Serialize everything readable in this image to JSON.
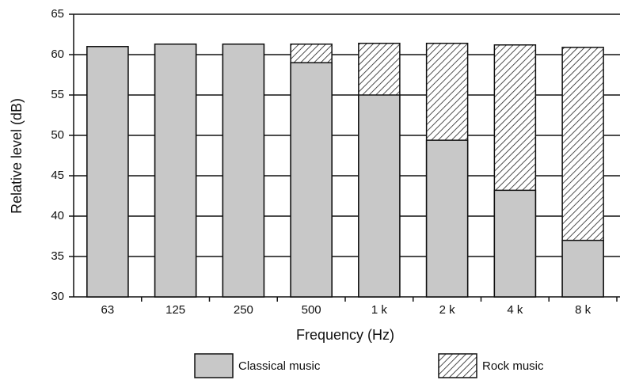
{
  "chart_data": {
    "type": "bar",
    "xlabel": "Frequency (Hz)",
    "ylabel": "Relative level (dB)",
    "categories": [
      "63",
      "125",
      "250",
      "500",
      "1 k",
      "2 k",
      "4 k",
      "8 k"
    ],
    "series": [
      {
        "name": "Rock music",
        "color": "#ffffff",
        "hatch": true,
        "values": [
          61,
          61.3,
          61.3,
          61.3,
          61.4,
          61.4,
          61.2,
          60.9
        ]
      },
      {
        "name": "Classical music",
        "color": "#c8c8c8",
        "hatch": false,
        "values": [
          61,
          61.3,
          61.3,
          59,
          55,
          49.4,
          43.2,
          37
        ]
      }
    ],
    "ylim": [
      30,
      65
    ],
    "yticks": [
      30,
      35,
      40,
      45,
      50,
      55,
      60,
      65
    ],
    "grid": true
  }
}
